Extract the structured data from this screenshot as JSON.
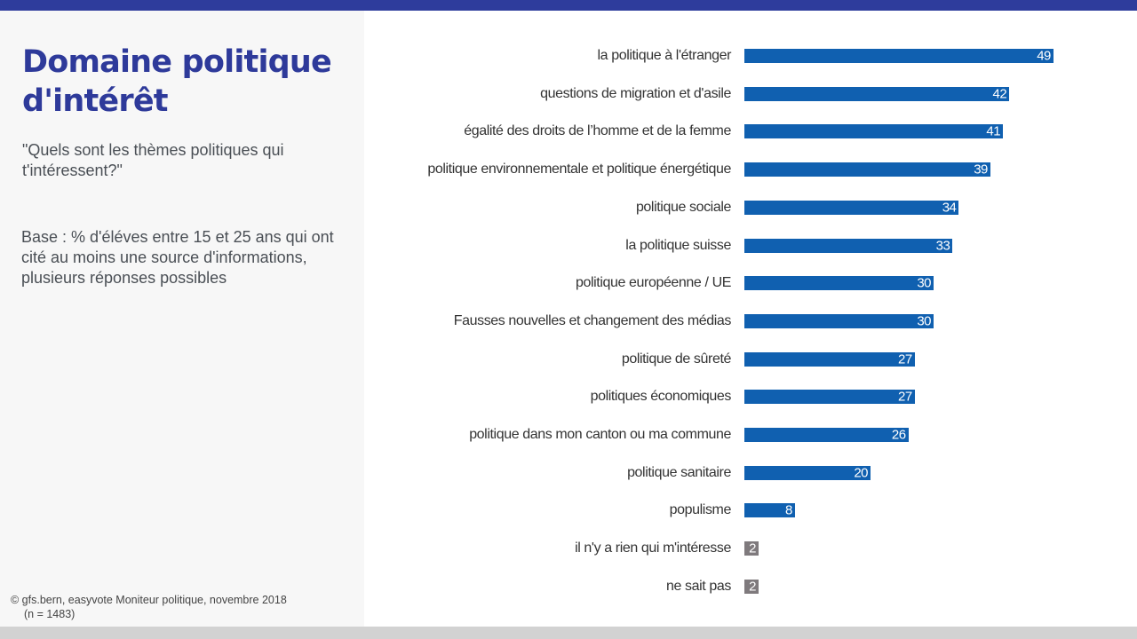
{
  "header": {
    "title": "Domaine politique d'intérêt",
    "question": "\"Quels sont les thèmes politiques qui t'intéressent?\"",
    "base": "Base : % d'éléves entre 15 et 25 ans qui ont cité au moins une source d'informations, plusieurs réponses possibles"
  },
  "footer": {
    "source": "© gfs.bern, easyvote Moniteur politique, novembre 2018",
    "n": "(n = 1483)"
  },
  "colors": {
    "accent": "#2e3c9c",
    "bar": "#1060b0",
    "bar_other": "#7f7a7d"
  },
  "chart_data": {
    "type": "bar",
    "orientation": "horizontal",
    "categories": [
      "la politique à l'étranger",
      "questions de migration et d'asile",
      "égalité des droits de l’homme et de la femme",
      "politique environnementale et politique énergétique",
      "politique sociale",
      "la politique suisse",
      "politique européenne / UE",
      "Fausses nouvelles et changement des médias",
      "politique de sûreté",
      "politiques économiques",
      "politique dans mon canton ou ma commune",
      "politique sanitaire",
      "populisme",
      "il n'y a rien qui m'intéresse",
      "ne sait pas"
    ],
    "values": [
      49,
      42,
      41,
      39,
      34,
      33,
      30,
      30,
      27,
      27,
      26,
      20,
      8,
      2,
      2
    ],
    "bar_colors": [
      "#1060b0",
      "#1060b0",
      "#1060b0",
      "#1060b0",
      "#1060b0",
      "#1060b0",
      "#1060b0",
      "#1060b0",
      "#1060b0",
      "#1060b0",
      "#1060b0",
      "#1060b0",
      "#1060b0",
      "#7f7a7d",
      "#7f7a7d"
    ],
    "data_labels": true,
    "grid": false,
    "legend": "none"
  }
}
